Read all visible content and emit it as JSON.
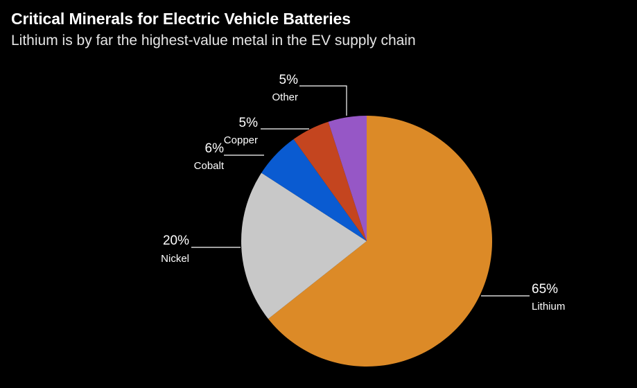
{
  "chart_data": {
    "type": "pie",
    "title": "Critical Minerals for Electric Vehicle Batteries",
    "subtitle": "Lithium is by far the highest-value metal in the EV supply chain",
    "slices": [
      {
        "label": "Lithium",
        "value": 65,
        "value_label": "65%",
        "color": "#dc8a27"
      },
      {
        "label": "Nickel",
        "value": 20,
        "value_label": "20%",
        "color": "#c8c8c8"
      },
      {
        "label": "Cobalt",
        "value": 6,
        "value_label": "6%",
        "color": "#0a5bd1"
      },
      {
        "label": "Copper",
        "value": 5,
        "value_label": "5%",
        "color": "#c4451f"
      },
      {
        "label": "Other",
        "value": 5,
        "value_label": "5%",
        "color": "#9657c6"
      }
    ],
    "start": "12 o'clock",
    "direction": "clockwise"
  }
}
